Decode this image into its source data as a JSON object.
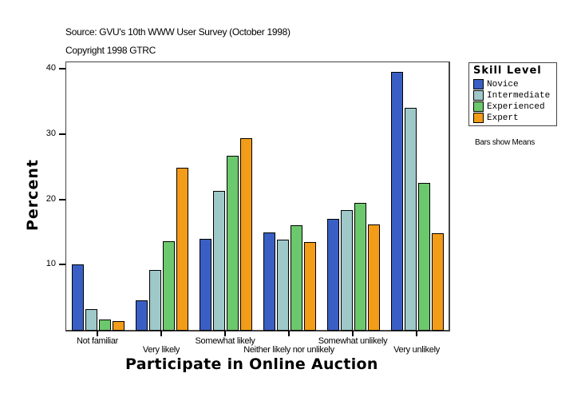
{
  "header": {
    "source": "Source: GVU's 10th WWW User Survey (October 1998)",
    "copyright": "Copyright 1998 GTRC"
  },
  "legend": {
    "title": "Skill Level",
    "items": [
      {
        "label": "Novice",
        "color": "#3a5fc4"
      },
      {
        "label": "Intermediate",
        "color": "#9fc8c9"
      },
      {
        "label": "Experienced",
        "color": "#6cc86c"
      },
      {
        "label": "Expert",
        "color": "#f39c18"
      }
    ]
  },
  "note": "Bars show Means",
  "chart_data": {
    "type": "bar",
    "title": "",
    "xlabel": "Participate in Online Auction",
    "ylabel": "Percent",
    "ylim": [
      0,
      40
    ],
    "yticks": [
      10,
      20,
      30,
      40
    ],
    "grid": false,
    "legend_position": "right",
    "legend_title": "Skill Level",
    "categories": [
      "Not familiar",
      "Very likely",
      "Somewhat likely",
      "Neither likely nor unlikely",
      "Somewhat unlikely",
      "Very unlikely"
    ],
    "series": [
      {
        "name": "Novice",
        "color": "#3a5fc4",
        "values": [
          10.0,
          4.5,
          14.0,
          14.9,
          17.0,
          39.5
        ]
      },
      {
        "name": "Intermediate",
        "color": "#9fc8c9",
        "values": [
          3.2,
          9.2,
          21.3,
          13.8,
          18.4,
          34.0
        ]
      },
      {
        "name": "Experienced",
        "color": "#6cc86c",
        "values": [
          1.6,
          13.6,
          26.7,
          16.0,
          19.5,
          22.5
        ]
      },
      {
        "name": "Expert",
        "color": "#f39c18",
        "values": [
          1.4,
          24.8,
          29.4,
          13.5,
          16.1,
          14.8
        ]
      }
    ],
    "annotations": [
      "Bars show Means"
    ]
  }
}
